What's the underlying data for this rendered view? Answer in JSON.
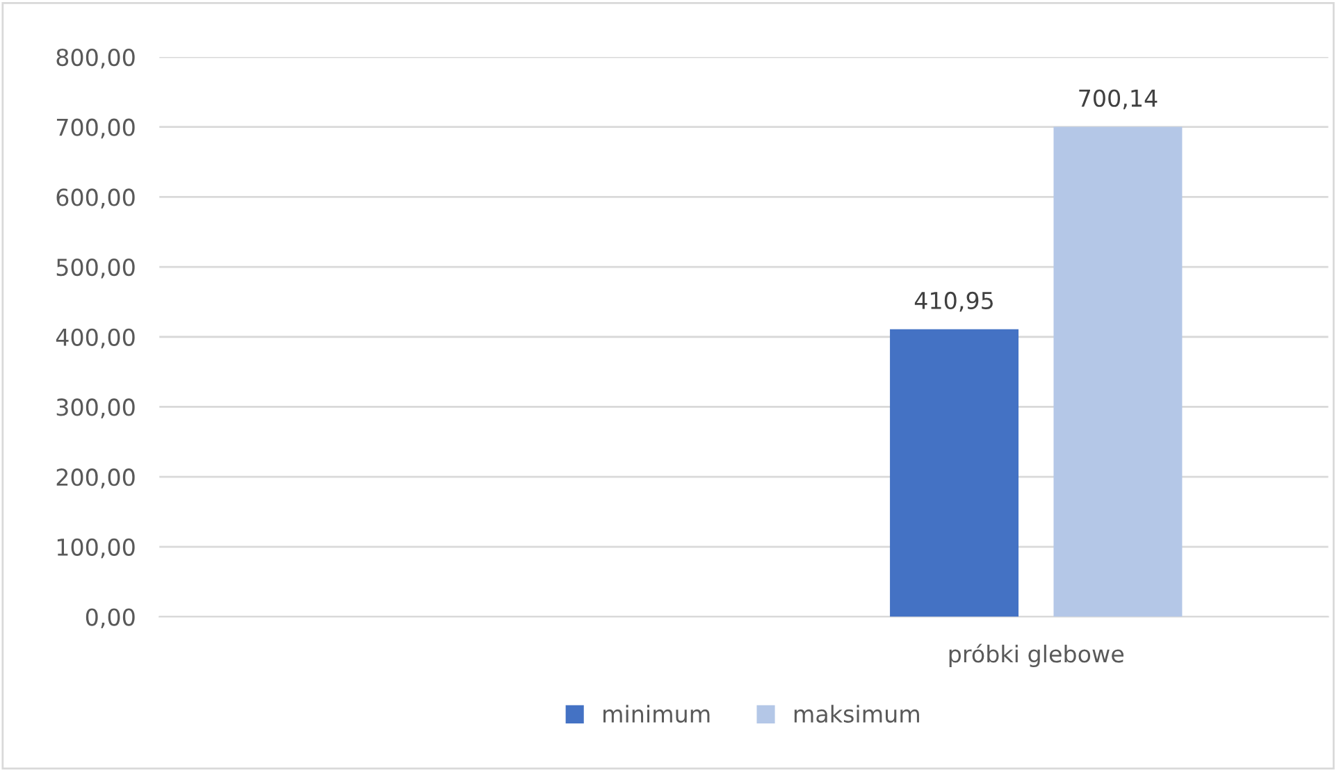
{
  "chart_data": {
    "type": "bar",
    "categories": [
      null,
      "próbki glebowe"
    ],
    "series": [
      {
        "name": "minimum",
        "color": "#4472c4",
        "values": [
          null,
          410.95
        ],
        "value_labels": [
          null,
          "410,95"
        ]
      },
      {
        "name": "maksimum",
        "color": "#b4c7e7",
        "values": [
          null,
          700.14
        ],
        "value_labels": [
          null,
          "700,14"
        ]
      }
    ],
    "ylim": [
      0,
      800
    ],
    "yticks": [
      {
        "value": 0,
        "label": "0,00"
      },
      {
        "value": 100,
        "label": "100,00"
      },
      {
        "value": 200,
        "label": "200,00"
      },
      {
        "value": 300,
        "label": "300,00"
      },
      {
        "value": 400,
        "label": "400,00"
      },
      {
        "value": 500,
        "label": "500,00"
      },
      {
        "value": 600,
        "label": "600,00"
      },
      {
        "value": 700,
        "label": "700,00"
      },
      {
        "value": 800,
        "label": "800,00"
      }
    ],
    "grid": "y",
    "legend": "bottom"
  }
}
